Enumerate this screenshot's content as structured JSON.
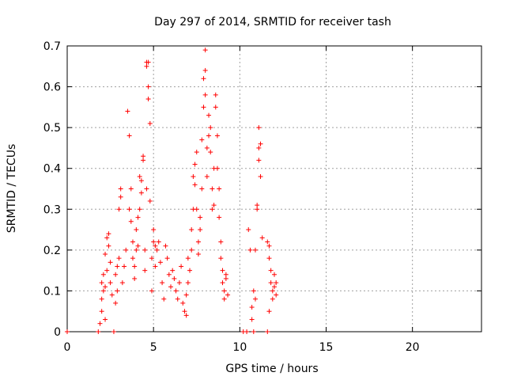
{
  "chart_data": {
    "type": "scatter",
    "title": "Day 297 of 2014, SRMTID for receiver tash",
    "xlabel": "GPS time / hours",
    "ylabel": "SRMTID / TECUs",
    "xlim": [
      0,
      24
    ],
    "ylim": [
      0,
      0.7
    ],
    "x_ticks": [
      0,
      5,
      10,
      15,
      20
    ],
    "x_tick_labels": [
      "0",
      "5",
      "10",
      "15",
      "20"
    ],
    "y_ticks": [
      0,
      0.1,
      0.2,
      0.3,
      0.4,
      0.5,
      0.6,
      0.7
    ],
    "y_tick_labels": [
      "0",
      "0.1",
      "0.2",
      "0.3",
      "0.4",
      "0.5",
      "0.6",
      "0.7"
    ],
    "grid": true,
    "marker": "plus",
    "series": [
      {
        "name": "SRMTID",
        "color": "#ff0000",
        "points": [
          [
            0.0,
            0.0
          ],
          [
            1.8,
            0.0
          ],
          [
            2.7,
            0.0
          ],
          [
            10.2,
            0.0
          ],
          [
            10.4,
            0.0
          ],
          [
            10.8,
            0.0
          ],
          [
            11.6,
            0.0
          ],
          [
            1.9,
            0.02
          ],
          [
            2.0,
            0.05
          ],
          [
            2.2,
            0.03
          ],
          [
            2.0,
            0.08
          ],
          [
            2.1,
            0.1
          ],
          [
            2.0,
            0.12
          ],
          [
            2.1,
            0.14
          ],
          [
            2.2,
            0.11
          ],
          [
            2.3,
            0.15
          ],
          [
            2.2,
            0.19
          ],
          [
            2.4,
            0.21
          ],
          [
            2.3,
            0.23
          ],
          [
            2.4,
            0.24
          ],
          [
            2.5,
            0.17
          ],
          [
            2.5,
            0.12
          ],
          [
            2.6,
            0.09
          ],
          [
            2.8,
            0.07
          ],
          [
            2.9,
            0.1
          ],
          [
            2.8,
            0.14
          ],
          [
            2.9,
            0.16
          ],
          [
            3.0,
            0.18
          ],
          [
            3.0,
            0.3
          ],
          [
            3.1,
            0.35
          ],
          [
            3.1,
            0.33
          ],
          [
            3.2,
            0.12
          ],
          [
            3.3,
            0.16
          ],
          [
            3.4,
            0.2
          ],
          [
            3.5,
            0.54
          ],
          [
            3.6,
            0.48
          ],
          [
            3.6,
            0.3
          ],
          [
            3.7,
            0.35
          ],
          [
            3.7,
            0.27
          ],
          [
            3.8,
            0.22
          ],
          [
            3.8,
            0.18
          ],
          [
            3.9,
            0.13
          ],
          [
            3.9,
            0.16
          ],
          [
            4.0,
            0.25
          ],
          [
            4.0,
            0.2
          ],
          [
            4.1,
            0.28
          ],
          [
            4.1,
            0.21
          ],
          [
            4.2,
            0.3
          ],
          [
            4.2,
            0.38
          ],
          [
            4.3,
            0.37
          ],
          [
            4.3,
            0.34
          ],
          [
            4.4,
            0.43
          ],
          [
            4.4,
            0.42
          ],
          [
            4.5,
            0.2
          ],
          [
            4.5,
            0.15
          ],
          [
            4.6,
            0.66
          ],
          [
            4.6,
            0.65
          ],
          [
            4.7,
            0.6
          ],
          [
            4.7,
            0.66
          ],
          [
            4.7,
            0.57
          ],
          [
            4.8,
            0.51
          ],
          [
            4.6,
            0.35
          ],
          [
            4.8,
            0.32
          ],
          [
            4.9,
            0.18
          ],
          [
            4.9,
            0.1
          ],
          [
            5.0,
            0.22
          ],
          [
            5.0,
            0.25
          ],
          [
            5.1,
            0.21
          ],
          [
            5.1,
            0.16
          ],
          [
            5.2,
            0.2
          ],
          [
            5.3,
            0.22
          ],
          [
            5.4,
            0.17
          ],
          [
            5.5,
            0.12
          ],
          [
            5.6,
            0.08
          ],
          [
            5.7,
            0.21
          ],
          [
            5.8,
            0.18
          ],
          [
            5.9,
            0.14
          ],
          [
            6.0,
            0.11
          ],
          [
            6.1,
            0.15
          ],
          [
            6.2,
            0.13
          ],
          [
            6.3,
            0.1
          ],
          [
            6.4,
            0.08
          ],
          [
            6.5,
            0.12
          ],
          [
            6.6,
            0.16
          ],
          [
            6.7,
            0.07
          ],
          [
            6.8,
            0.05
          ],
          [
            6.9,
            0.04
          ],
          [
            6.9,
            0.09
          ],
          [
            7.0,
            0.12
          ],
          [
            7.0,
            0.18
          ],
          [
            7.1,
            0.15
          ],
          [
            7.2,
            0.2
          ],
          [
            7.2,
            0.25
          ],
          [
            7.3,
            0.3
          ],
          [
            7.3,
            0.38
          ],
          [
            7.4,
            0.36
          ],
          [
            7.4,
            0.41
          ],
          [
            7.5,
            0.44
          ],
          [
            7.5,
            0.3
          ],
          [
            7.6,
            0.22
          ],
          [
            7.6,
            0.19
          ],
          [
            7.7,
            0.25
          ],
          [
            7.7,
            0.28
          ],
          [
            7.8,
            0.35
          ],
          [
            7.8,
            0.47
          ],
          [
            7.9,
            0.55
          ],
          [
            7.9,
            0.62
          ],
          [
            8.0,
            0.64
          ],
          [
            8.0,
            0.69
          ],
          [
            8.0,
            0.58
          ],
          [
            8.1,
            0.45
          ],
          [
            8.1,
            0.38
          ],
          [
            8.2,
            0.53
          ],
          [
            8.2,
            0.48
          ],
          [
            8.3,
            0.5
          ],
          [
            8.3,
            0.44
          ],
          [
            8.4,
            0.35
          ],
          [
            8.4,
            0.3
          ],
          [
            8.5,
            0.4
          ],
          [
            8.5,
            0.31
          ],
          [
            8.6,
            0.55
          ],
          [
            8.6,
            0.58
          ],
          [
            8.7,
            0.48
          ],
          [
            8.7,
            0.4
          ],
          [
            8.8,
            0.35
          ],
          [
            8.8,
            0.28
          ],
          [
            8.9,
            0.22
          ],
          [
            8.9,
            0.18
          ],
          [
            9.0,
            0.15
          ],
          [
            9.0,
            0.12
          ],
          [
            9.1,
            0.1
          ],
          [
            9.1,
            0.08
          ],
          [
            9.2,
            0.13
          ],
          [
            9.2,
            0.14
          ],
          [
            9.3,
            0.09
          ],
          [
            10.5,
            0.25
          ],
          [
            10.6,
            0.2
          ],
          [
            10.7,
            0.06
          ],
          [
            10.7,
            0.03
          ],
          [
            10.8,
            0.1
          ],
          [
            10.9,
            0.08
          ],
          [
            10.9,
            0.2
          ],
          [
            11.0,
            0.31
          ],
          [
            11.0,
            0.3
          ],
          [
            11.1,
            0.42
          ],
          [
            11.1,
            0.45
          ],
          [
            11.1,
            0.5
          ],
          [
            11.2,
            0.46
          ],
          [
            11.2,
            0.38
          ],
          [
            11.3,
            0.23
          ],
          [
            11.6,
            0.22
          ],
          [
            11.7,
            0.21
          ],
          [
            11.7,
            0.18
          ],
          [
            11.8,
            0.15
          ],
          [
            11.8,
            0.12
          ],
          [
            11.9,
            0.1
          ],
          [
            11.9,
            0.08
          ],
          [
            12.0,
            0.14
          ],
          [
            12.0,
            0.11
          ],
          [
            12.1,
            0.12
          ],
          [
            12.1,
            0.09
          ],
          [
            11.7,
            0.05
          ]
        ]
      }
    ]
  }
}
